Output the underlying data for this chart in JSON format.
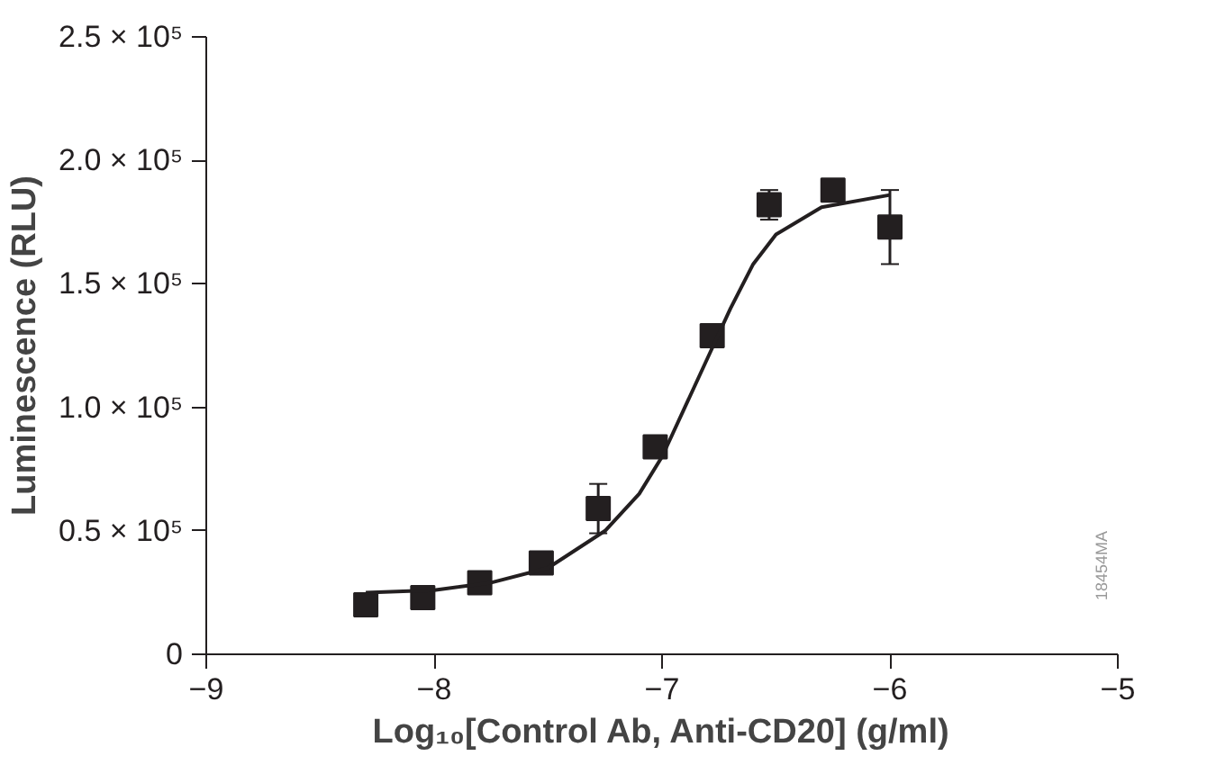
{
  "chart_data": {
    "type": "scatter",
    "xlabel": "Log₁₀[Control Ab, Anti-CD20] (g/ml)",
    "ylabel": "Luminescence (RLU)",
    "annotations": [
      "18454MA"
    ],
    "xlim": [
      -9,
      -5
    ],
    "xticks": [
      {
        "value": -9,
        "label": "−9"
      },
      {
        "value": -8,
        "label": "−8"
      },
      {
        "value": -7,
        "label": "−7"
      },
      {
        "value": -6,
        "label": "−6"
      },
      {
        "value": -5,
        "label": "−5"
      }
    ],
    "ylim": [
      0,
      250000
    ],
    "yticks": [
      {
        "value": 0,
        "label": "0"
      },
      {
        "value": 50000,
        "label": "0.5 × 10⁵"
      },
      {
        "value": 100000,
        "label": "1.0 × 10⁵"
      },
      {
        "value": 150000,
        "label": "1.5 × 10⁵"
      },
      {
        "value": 200000,
        "label": "2.0 × 10⁵"
      },
      {
        "value": 250000,
        "label": "2.5 × 10⁵"
      }
    ],
    "grid": false,
    "series": [
      {
        "color": "#231f20",
        "marker": "square",
        "x": [
          -8.3,
          -8.05,
          -7.8,
          -7.53,
          -7.28,
          -7.03,
          -6.78,
          -6.53,
          -6.25,
          -6.0
        ],
        "values": [
          20000,
          23000,
          29000,
          37000,
          59000,
          84000,
          129000,
          182000,
          188000,
          173000
        ],
        "errors": [
          null,
          null,
          null,
          null,
          10000,
          null,
          null,
          6000,
          3000,
          15000
        ]
      },
      {
        "type": "line",
        "color": "#231f20",
        "line_style": "solid",
        "x": [
          -8.3,
          -8.0,
          -7.75,
          -7.5,
          -7.25,
          -7.1,
          -7.0,
          -6.9,
          -6.8,
          -6.7,
          -6.6,
          -6.5,
          -6.3,
          -6.0
        ],
        "values": [
          25000,
          26000,
          29000,
          35000,
          50000,
          65000,
          80000,
          100000,
          120000,
          140000,
          158000,
          170000,
          181000,
          186000
        ]
      }
    ]
  }
}
